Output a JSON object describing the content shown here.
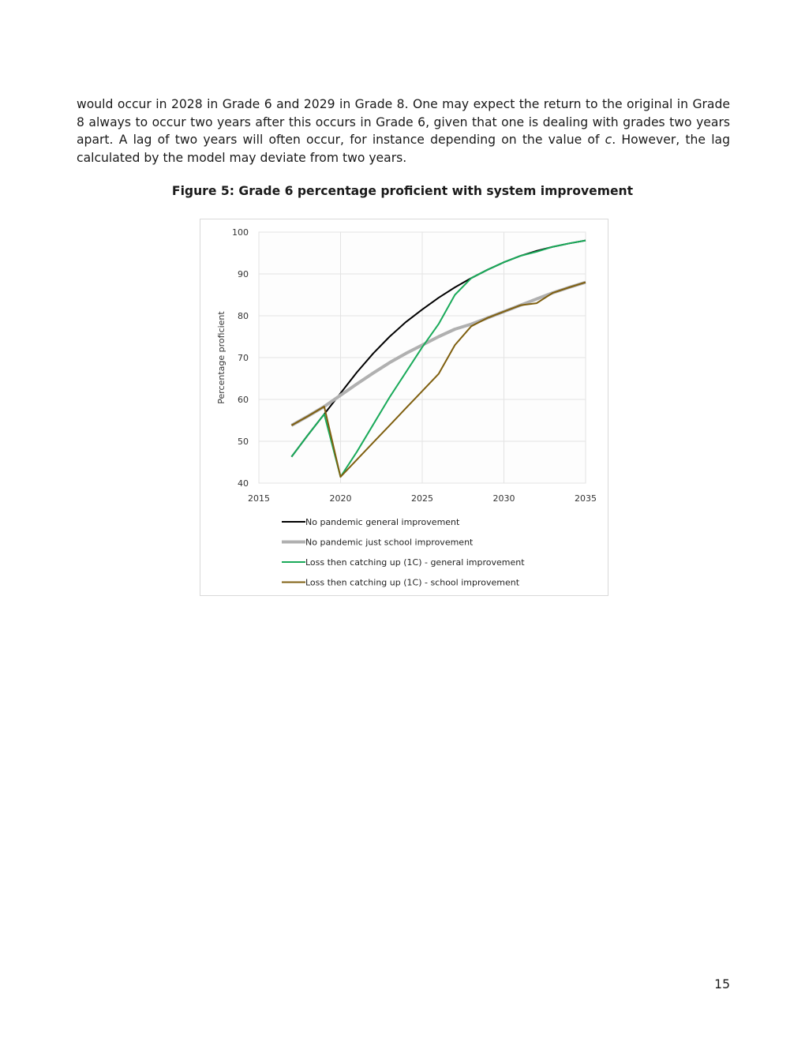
{
  "body_text": {
    "lines": [
      "would occur in 2028 in Grade 6 and 2029 in Grade 8. One may expect the return to the original in Grade 8 always to occur two years after this occurs in Grade 6, given that one is dealing with grades two years apart. A lag of two years will often occur, for instance depending on the value of ",
      "c",
      ". However, the lag calculated by the model may deviate from two years."
    ]
  },
  "figure": {
    "caption": "Figure 5: Grade 6 percentage proficient with system improvement"
  },
  "page_number": "15",
  "chart_data": {
    "type": "line",
    "title": "",
    "xlabel": "",
    "ylabel": "Percentage proficient",
    "xlim": [
      2015,
      2035
    ],
    "ylim": [
      40,
      100
    ],
    "xticks": [
      2015,
      2020,
      2025,
      2030,
      2035
    ],
    "yticks": [
      40,
      50,
      60,
      70,
      80,
      90,
      100
    ],
    "grid": true,
    "legend": "bottom",
    "x": [
      2017,
      2018,
      2019,
      2020,
      2021,
      2022,
      2023,
      2024,
      2025,
      2026,
      2027,
      2028,
      2029,
      2030,
      2031,
      2032,
      2033,
      2034,
      2035
    ],
    "series": [
      {
        "name": "No pandemic general improvement",
        "color": "#000000",
        "values": [
          46.3,
          51.5,
          56.5,
          61.5,
          66.5,
          71,
          75,
          78.5,
          81.5,
          84.3,
          86.8,
          89,
          91,
          92.8,
          94.3,
          95.5,
          96.5,
          97.3,
          98
        ]
      },
      {
        "name": "No pandemic just school improvement",
        "color": "#b0b0b0",
        "values": [
          53.8,
          56,
          58.3,
          61,
          63.7,
          66.3,
          68.8,
          71,
          73,
          75,
          76.8,
          78,
          79.5,
          81,
          82.5,
          84,
          85.5,
          86.8,
          88
        ]
      },
      {
        "name": "Loss then catching up (1C) - general improvement",
        "color": "#1aaa5a",
        "values": [
          46.3,
          51.5,
          56.5,
          41.5,
          47.5,
          54,
          60.5,
          66.5,
          72.5,
          78,
          85,
          89,
          91,
          92.8,
          94.3,
          95.3,
          96.5,
          97.3,
          98
        ]
      },
      {
        "name": "Loss then catching up (1C) - school improvement",
        "color": "#7f5f0f",
        "values": [
          53.8,
          56,
          58.3,
          41.5,
          45.6,
          49.7,
          53.8,
          57.9,
          62,
          66.1,
          73,
          77.5,
          79.5,
          81,
          82.5,
          83,
          85.5,
          86.8,
          88
        ]
      }
    ]
  }
}
